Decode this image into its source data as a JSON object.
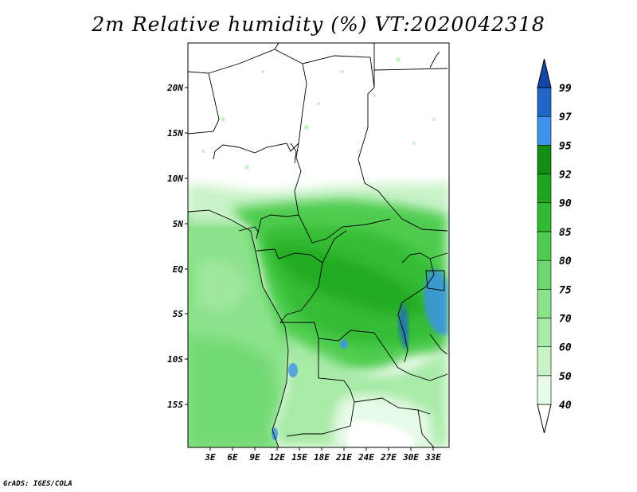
{
  "title": "2m Relative humidity (%) VT:2020042318",
  "credit": "GrADS: IGES/COLA",
  "lat_labels": [
    "20N",
    "15N",
    "10N",
    "5N",
    "EQ",
    "5S",
    "10S",
    "15S"
  ],
  "lon_labels": [
    "3E",
    "6E",
    "9E",
    "12E",
    "15E",
    "18E",
    "21E",
    "24E",
    "27E",
    "30E",
    "33E"
  ],
  "colorbar": {
    "levels": [
      "40",
      "50",
      "60",
      "70",
      "75",
      "80",
      "85",
      "90",
      "92",
      "95",
      "97",
      "99"
    ],
    "colors": [
      "#ffffff",
      "#e8fae8",
      "#c8f2c8",
      "#a8eaa8",
      "#8ce28c",
      "#6ed86e",
      "#50cc50",
      "#32ba32",
      "#1ea41e",
      "#128c12",
      "#3e93e8",
      "#2166c8",
      "#1448a8"
    ]
  },
  "map_extent": {
    "lon_min": 0,
    "lon_max": 35,
    "lat_min": -20,
    "lat_max": 25
  }
}
